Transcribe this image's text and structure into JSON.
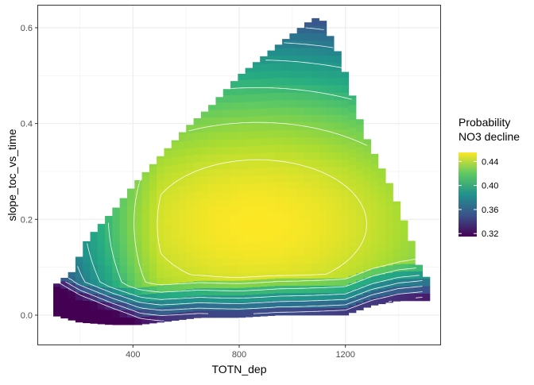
{
  "chart_data": {
    "type": "heatmap",
    "xlabel": "TOTN_dep",
    "ylabel": "slope_toc_vs_time",
    "xlim": [
      40,
      1560
    ],
    "ylim": [
      -0.063,
      0.648
    ],
    "x_ticks": [
      400,
      800,
      1200
    ],
    "y_ticks": [
      0.0,
      0.2,
      0.4,
      0.6
    ],
    "x_tick_labels": [
      "400",
      "800",
      "1200"
    ],
    "y_tick_labels": [
      "0.0",
      "0.2",
      "0.4",
      "0.6"
    ],
    "grid": true,
    "legend": {
      "title_lines": [
        "Probability",
        "NO3 decline"
      ],
      "placement": "right",
      "breaks": [
        0.44,
        0.4,
        0.36,
        0.32
      ],
      "break_labels": [
        "0.44",
        "0.40",
        "0.36",
        "0.32"
      ],
      "range": [
        0.315,
        0.455
      ],
      "colormap": "viridis"
    },
    "surface": {
      "x_range": [
        100,
        1490
      ],
      "x_step": 27.8,
      "y_step": 0.0155,
      "y_top_profile": [
        [
          100,
          0.06
        ],
        [
          170,
          0.09
        ],
        [
          230,
          0.16
        ],
        [
          330,
          0.22
        ],
        [
          400,
          0.27
        ],
        [
          500,
          0.33
        ],
        [
          600,
          0.39
        ],
        [
          700,
          0.44
        ],
        [
          800,
          0.5
        ],
        [
          960,
          0.57
        ],
        [
          1080,
          0.62
        ],
        [
          1110,
          0.62
        ],
        [
          1180,
          0.54
        ],
        [
          1270,
          0.38
        ],
        [
          1370,
          0.27
        ],
        [
          1440,
          0.17
        ],
        [
          1490,
          0.08
        ]
      ],
      "y_bottom_profile": [
        [
          100,
          0.0
        ],
        [
          200,
          -0.015
        ],
        [
          320,
          -0.02
        ],
        [
          420,
          -0.02
        ],
        [
          500,
          -0.015
        ],
        [
          650,
          -0.005
        ],
        [
          800,
          -0.005
        ],
        [
          950,
          0.0
        ],
        [
          1100,
          0.0
        ],
        [
          1200,
          0.0
        ],
        [
          1300,
          0.02
        ],
        [
          1400,
          0.03
        ],
        [
          1490,
          0.03
        ]
      ],
      "peak": {
        "x": 870,
        "y": 0.19,
        "value": 0.455
      },
      "min_value": 0.315,
      "contour_levels": [
        0.33,
        0.345,
        0.36,
        0.375,
        0.39,
        0.41,
        0.43,
        0.445
      ]
    }
  }
}
